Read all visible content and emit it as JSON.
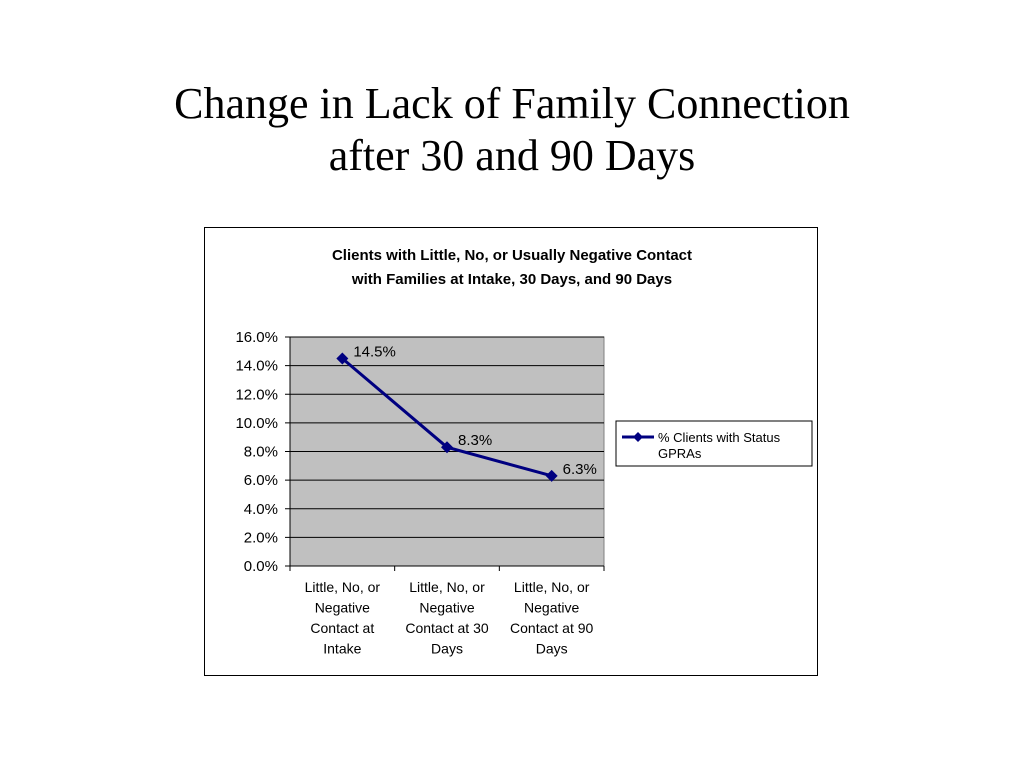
{
  "slide": {
    "title_line1": "Change in Lack of Family Connection",
    "title_line2": "after 30 and 90 Days"
  },
  "chart_data": {
    "type": "line",
    "title_line1": "Clients with Little, No, or Usually Negative Contact",
    "title_line2": "with Families at Intake, 30 Days, and 90 Days",
    "categories": [
      [
        "Little, No, or",
        "Negative",
        "Contact at",
        "Intake"
      ],
      [
        "Little, No, or",
        "Negative",
        "Contact at 30",
        "Days"
      ],
      [
        "Little, No, or",
        "Negative",
        "Contact at 90",
        "Days"
      ]
    ],
    "series": [
      {
        "name_line1": "% Clients with Status",
        "name_line2": "GPRAs",
        "values": [
          14.5,
          8.3,
          6.3
        ],
        "labels": [
          "14.5%",
          "8.3%",
          "6.3%"
        ]
      }
    ],
    "ylim": [
      0,
      16
    ],
    "yticks": [
      0,
      2,
      4,
      6,
      8,
      10,
      12,
      14,
      16
    ],
    "ytick_labels": [
      "0.0%",
      "2.0%",
      "4.0%",
      "6.0%",
      "8.0%",
      "10.0%",
      "12.0%",
      "14.0%",
      "16.0%"
    ],
    "grid": true,
    "legend_position": "right",
    "colors": {
      "series": "#000080",
      "plot_background": "#c0c0c0",
      "gridline": "#000000"
    }
  }
}
